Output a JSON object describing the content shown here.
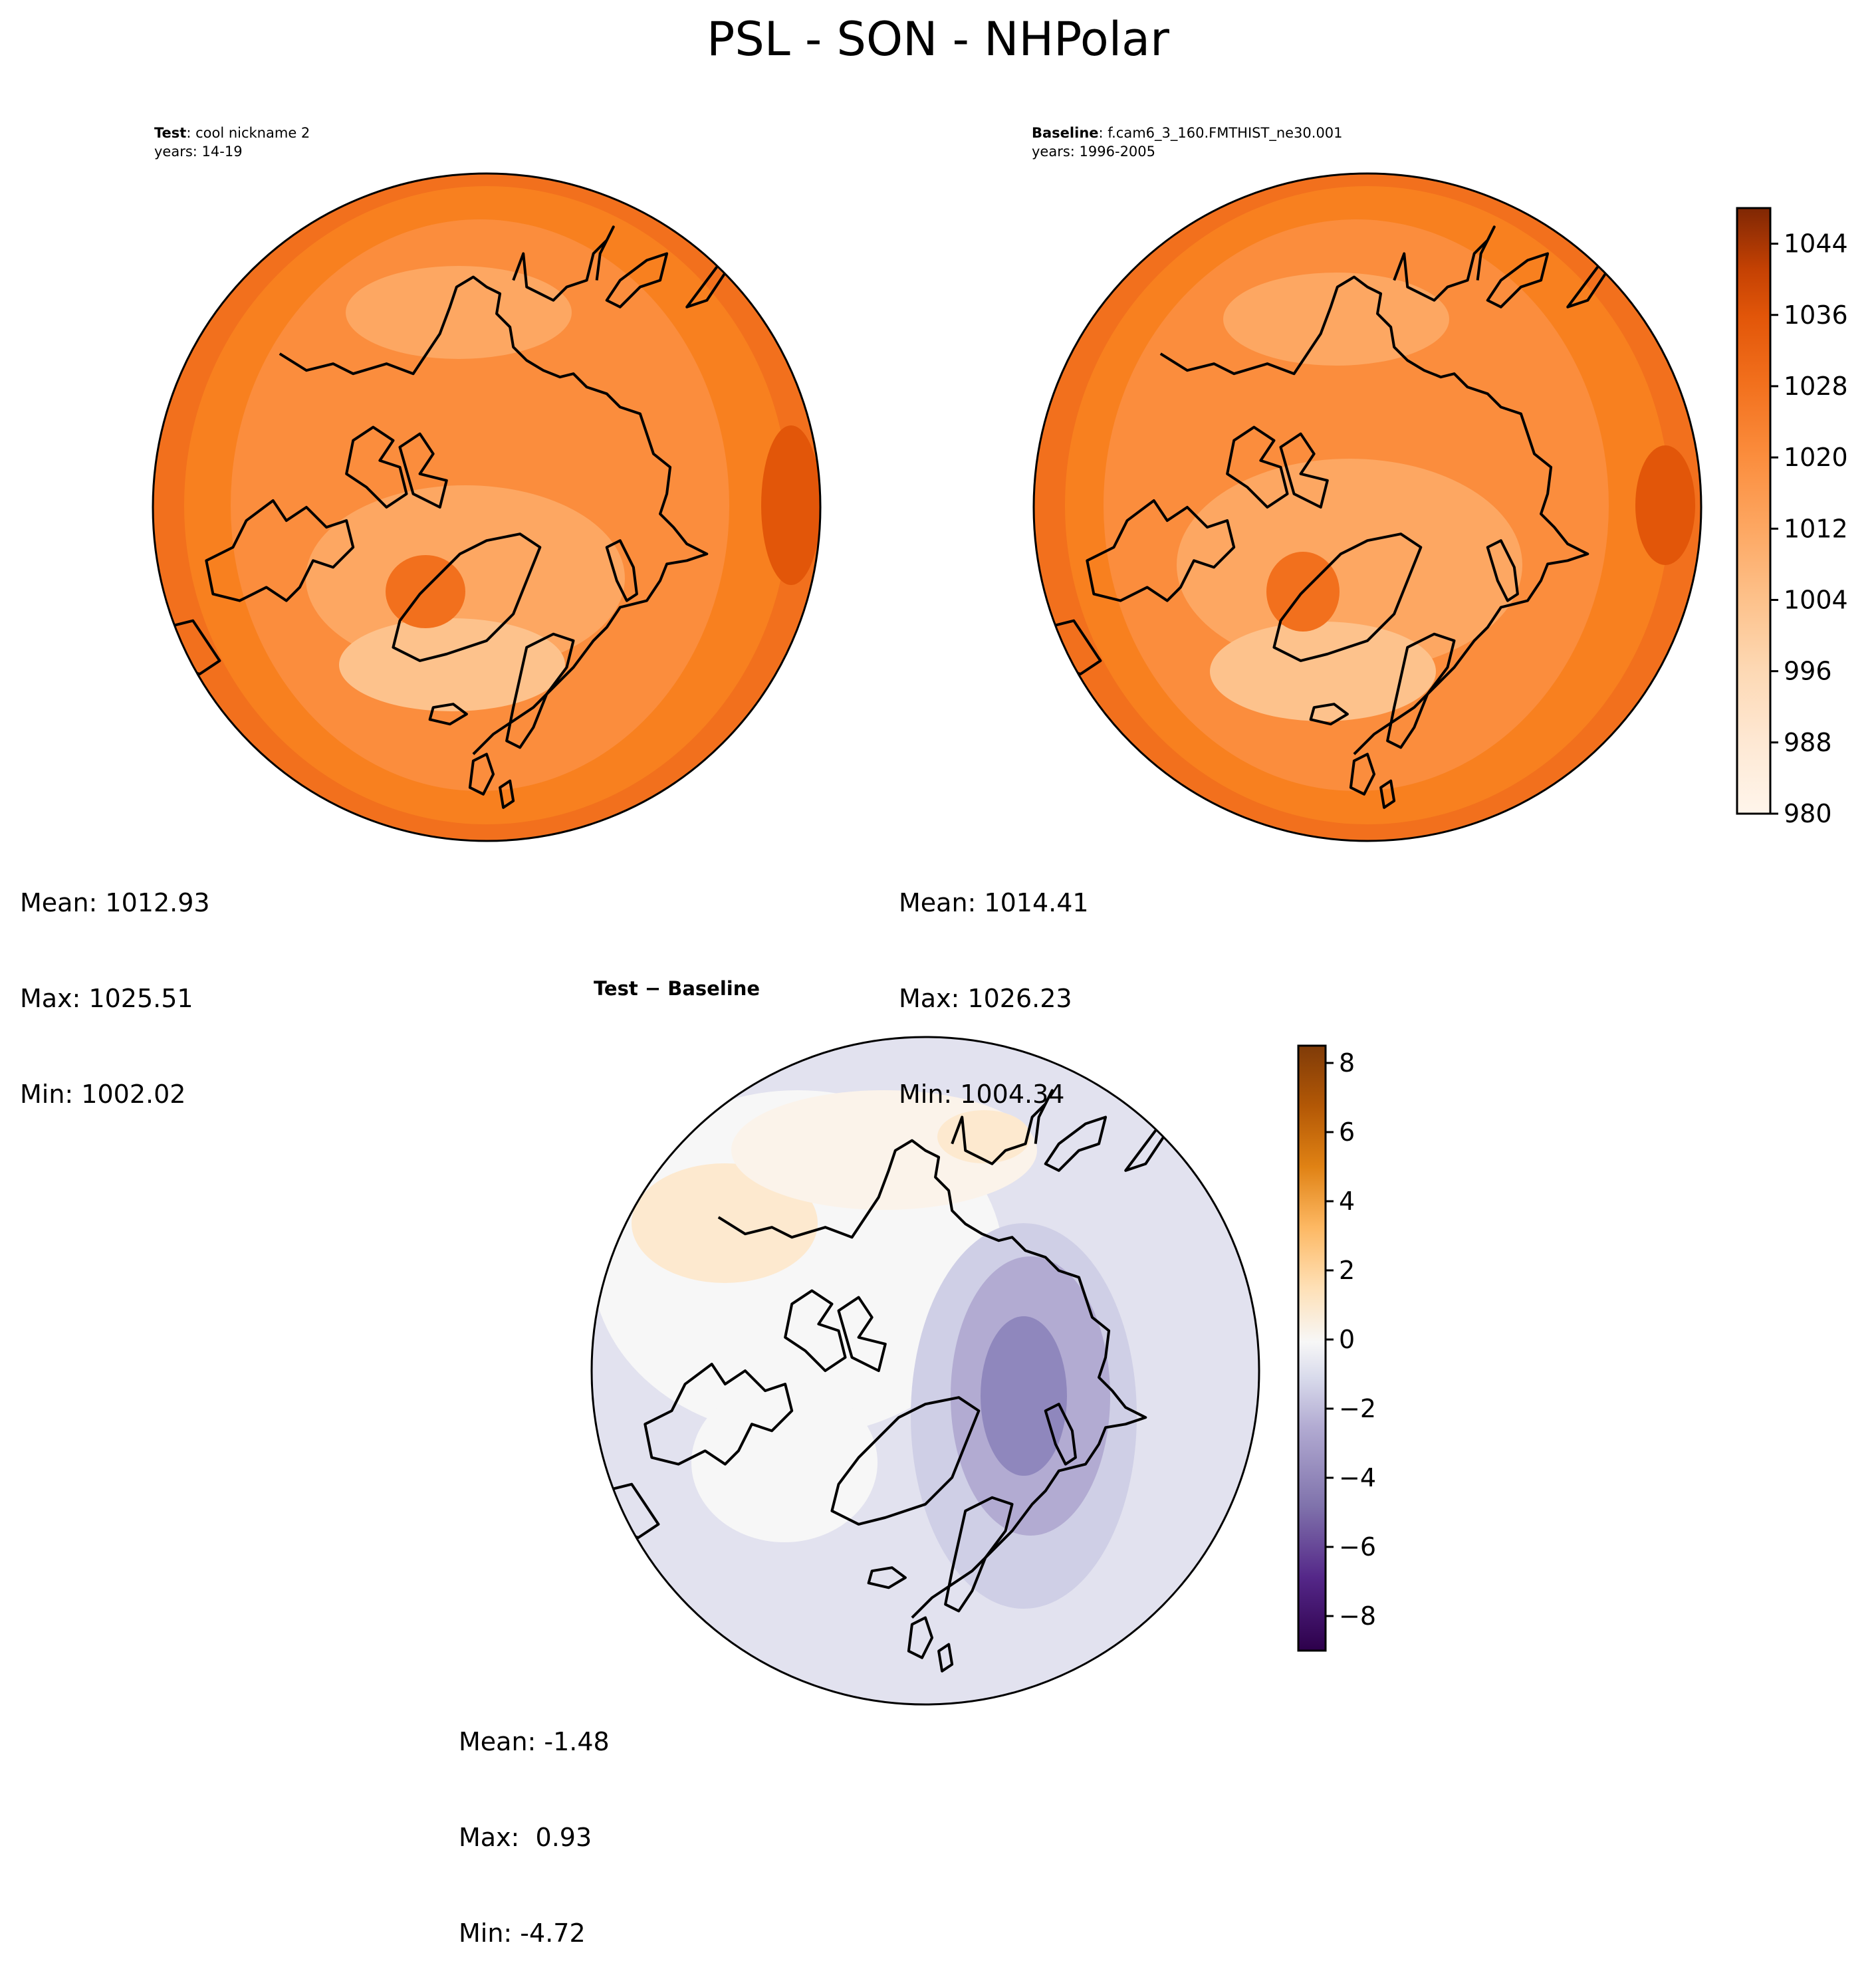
{
  "title": "PSL - SON - NHPolar",
  "panels": [
    {
      "id": "test",
      "label_bold": "Test",
      "label_rest": ": cool nickname 2",
      "years": "years: 14-19",
      "stats": {
        "mean": "Mean: 1012.93",
        "max": "Max: 1025.51",
        "min": "Min: 1002.02"
      }
    },
    {
      "id": "baseline",
      "label_bold": "Baseline",
      "label_rest": ": f.cam6_3_160.FMTHIST_ne30.001",
      "years": "years: 1996-2005",
      "stats": {
        "mean": "Mean: 1014.41",
        "max": "Max: 1026.23",
        "min": "Min: 1004.34"
      }
    },
    {
      "id": "diff",
      "label": "Test − Baseline",
      "stats": {
        "mean": "Mean: -1.48",
        "max": "Max:  0.93",
        "min": "Min: -4.72"
      }
    }
  ],
  "colorbars": [
    {
      "name": "psl-colorbar",
      "colormap": "Oranges",
      "range": [
        980,
        1048
      ],
      "ticks": [
        "980",
        "988",
        "996",
        "1004",
        "1012",
        "1020",
        "1028",
        "1036",
        "1044"
      ],
      "tick_values": [
        980,
        988,
        996,
        1004,
        1012,
        1020,
        1028,
        1036,
        1044
      ],
      "colors": [
        "#fff5eb",
        "#fee8d3",
        "#fdd8b3",
        "#fdc28c",
        "#fda762",
        "#fb8d3d",
        "#f2701d",
        "#e25609",
        "#c44103",
        "#9f3303",
        "#7f2704"
      ]
    },
    {
      "name": "diff-colorbar",
      "colormap": "PuOr_r",
      "range": [
        -9,
        8.5
      ],
      "ticks": [
        "−8",
        "−6",
        "−4",
        "−2",
        "0",
        "2",
        "4",
        "6",
        "8"
      ],
      "tick_values": [
        -8,
        -6,
        -4,
        -2,
        0,
        2,
        4,
        6,
        8
      ],
      "colors": [
        "#2d004b",
        "#542788",
        "#8073ac",
        "#b2abd2",
        "#d8daeb",
        "#f7f7f7",
        "#fee0b6",
        "#fdb863",
        "#e08214",
        "#b35806",
        "#7f3b08"
      ]
    }
  ]
}
